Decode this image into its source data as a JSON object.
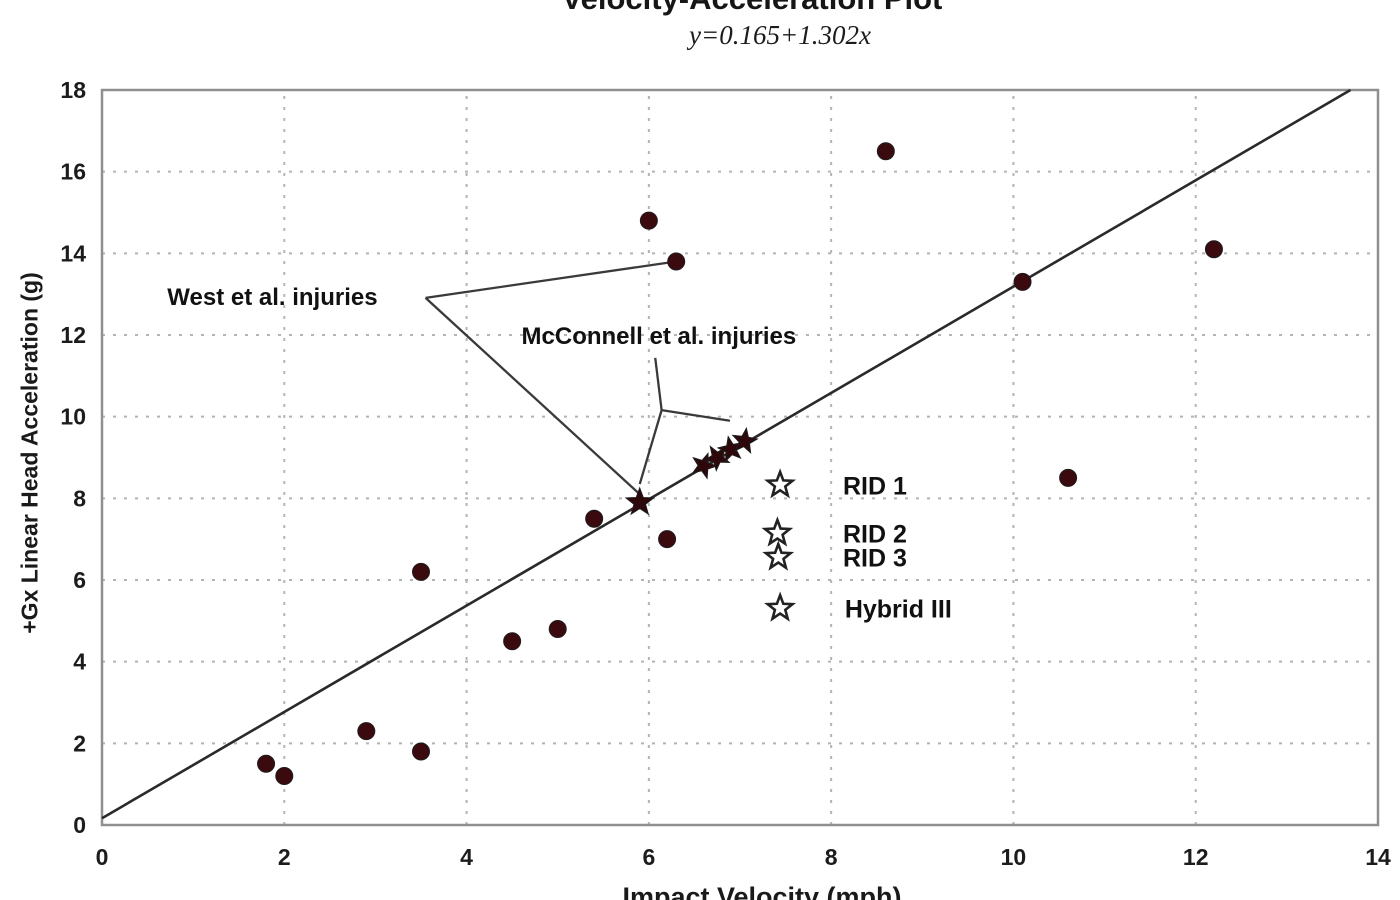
{
  "chart_data": {
    "type": "scatter",
    "title": "Velocity-Acceleration Plot",
    "equation": "y=0.165+1.302x",
    "xlabel": "Impact Velocity (mph)",
    "ylabel": "+Gx Linear Head Acceleration (g)",
    "xlim": [
      0,
      14
    ],
    "ylim": [
      0,
      18
    ],
    "xticks": [
      0,
      2,
      4,
      6,
      8,
      10,
      12,
      14
    ],
    "yticks": [
      0,
      2,
      4,
      6,
      8,
      10,
      12,
      14,
      16,
      18
    ],
    "grid": "dashed",
    "legend_position": "free-floating inside plot, right-center",
    "regression": {
      "intercept": 0.165,
      "slope": 1.302
    },
    "series": [
      {
        "name": "circle-points",
        "marker": "filled-circle",
        "color": "#3a0a0e",
        "size": 8.5,
        "points": [
          [
            1.8,
            1.5
          ],
          [
            2.0,
            1.2
          ],
          [
            2.9,
            2.3
          ],
          [
            3.5,
            1.8
          ],
          [
            3.5,
            6.2
          ],
          [
            4.5,
            4.5
          ],
          [
            5.0,
            4.8
          ],
          [
            5.4,
            7.5
          ],
          [
            6.2,
            7.0
          ],
          [
            6.0,
            14.8
          ],
          [
            6.3,
            13.8
          ],
          [
            8.6,
            16.5
          ],
          [
            10.1,
            13.3
          ],
          [
            10.6,
            8.5
          ],
          [
            12.2,
            14.1
          ]
        ]
      },
      {
        "name": "star-points",
        "marker": "filled-star",
        "color": "#2e070b",
        "size": 13,
        "points": [
          [
            5.9,
            7.9
          ],
          [
            6.6,
            8.8
          ],
          [
            6.75,
            9.0
          ],
          [
            6.9,
            9.2
          ],
          [
            7.05,
            9.4
          ]
        ]
      }
    ],
    "annotations": [
      {
        "text": "West et al. injuries",
        "text_xy": [
          1.87,
          12.93
        ],
        "lines": [
          [
            [
              3.55,
              12.91
            ],
            [
              6.27,
              13.79
            ]
          ],
          [
            [
              3.55,
              12.91
            ],
            [
              5.9,
              8.1
            ]
          ]
        ]
      },
      {
        "text": "McConnell et al. injuries",
        "text_xy": [
          6.11,
          11.98
        ],
        "lines": [
          [
            [
              6.07,
              11.44
            ],
            [
              6.14,
              10.16
            ]
          ],
          [
            [
              6.14,
              10.16
            ],
            [
              5.9,
              8.35
            ]
          ],
          [
            [
              6.14,
              10.16
            ],
            [
              6.89,
              9.9
            ]
          ]
        ]
      }
    ],
    "legend": [
      {
        "label": "RID 1",
        "marker": "open-star",
        "star_xy": [
          7.44,
          8.33
        ],
        "label_xy": [
          8.13,
          8.31
        ]
      },
      {
        "label": "RID 2",
        "marker": "open-star",
        "star_xy": [
          7.41,
          7.15
        ],
        "label_xy": [
          8.13,
          7.14
        ]
      },
      {
        "label": "RID 3",
        "marker": "open-star",
        "star_xy": [
          7.42,
          6.56
        ],
        "label_xy": [
          8.13,
          6.55
        ]
      },
      {
        "label": "Hybrid III",
        "marker": "open-star",
        "star_xy": [
          7.44,
          5.31
        ],
        "label_xy": [
          8.15,
          5.3
        ]
      }
    ],
    "colors": {
      "point_fill": "#3a0a0e",
      "frame": "#8f8f8f",
      "gridline": "#b4b4b4",
      "regression_line": "#2a2a2a",
      "annotation_line": "#3a3a3a",
      "text": "#1a1a1a",
      "background": "#ffffff"
    }
  }
}
